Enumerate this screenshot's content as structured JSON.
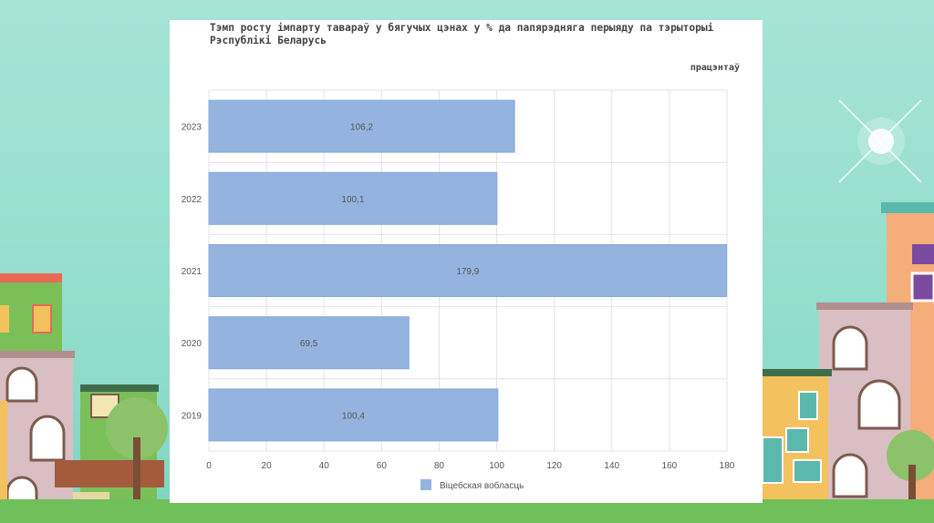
{
  "colors": {
    "bar": "#94b4df",
    "bar_stroke": "#88a8d8",
    "grid": "#e4e4e4",
    "text": "#555555"
  },
  "chart_data": {
    "type": "bar",
    "orientation": "horizontal",
    "title": "Тэмп росту імпарту тавараў у бягучых цэнах у % да папярэдняга перыяду па тэрыторыі Рэспублікі Беларусь",
    "unit_label": "працэнтаў",
    "categories": [
      "2023",
      "2022",
      "2021",
      "2020",
      "2019"
    ],
    "series": [
      {
        "name": "Віцебская вобласць",
        "values": [
          106.2,
          100.1,
          179.9,
          69.5,
          100.4
        ]
      }
    ],
    "data_labels": [
      "106,2",
      "100,1",
      "179,9",
      "69,5",
      "100,4"
    ],
    "xlim": [
      0,
      180
    ],
    "xticks": [
      0,
      20,
      40,
      60,
      80,
      100,
      120,
      140,
      160,
      180
    ],
    "grid": true,
    "legend": "bottom"
  }
}
